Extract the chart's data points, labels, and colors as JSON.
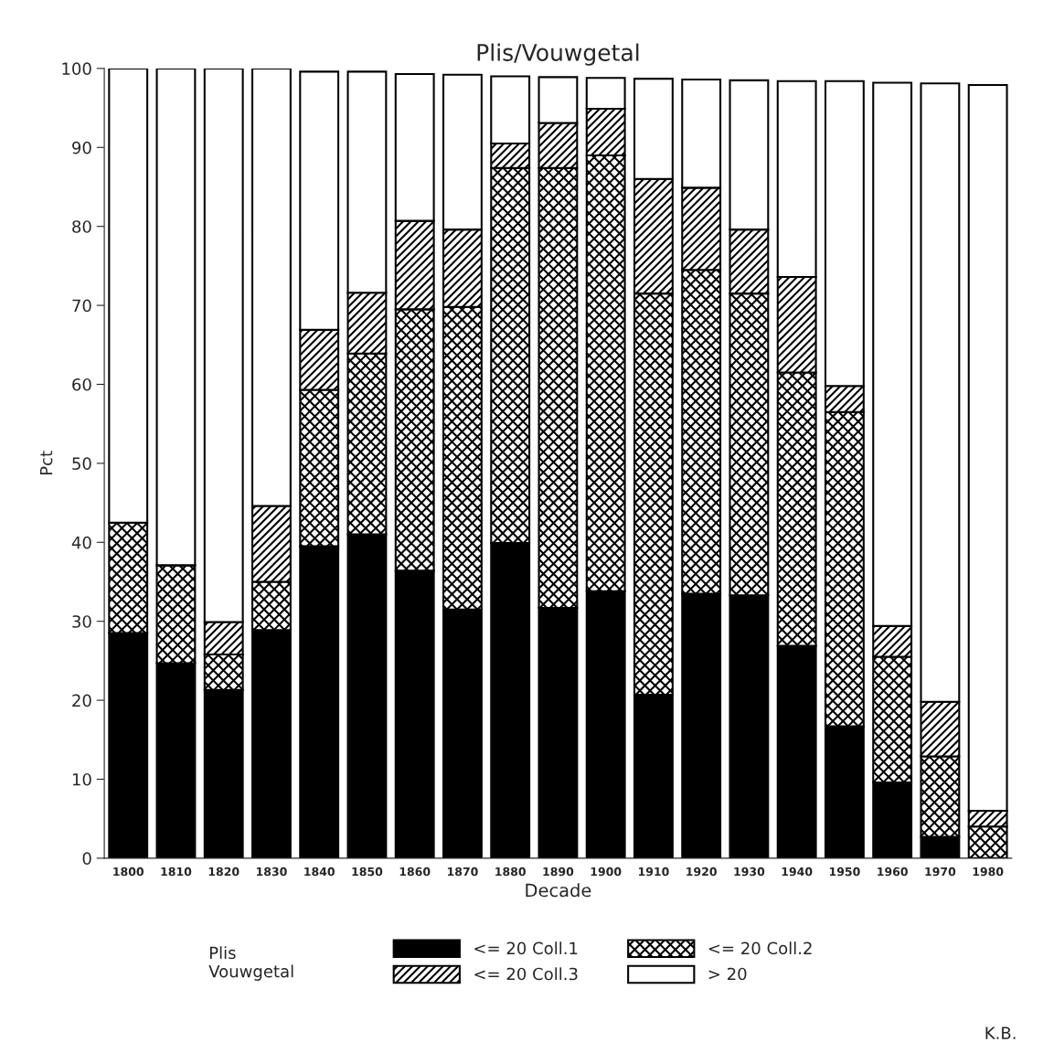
{
  "chart_data": {
    "type": "bar",
    "stacked": true,
    "title": "Plis/Vouwgetal",
    "xlabel": "Decade",
    "ylabel": "Pct",
    "legend_title": "Plis\nVouwgetal",
    "legend": "bottom",
    "grid": false,
    "categories": [
      "1800",
      "1810",
      "1820",
      "1830",
      "1840",
      "1850",
      "1860",
      "1870",
      "1880",
      "1890",
      "1900",
      "1910",
      "1920",
      "1930",
      "1940",
      "1950",
      "1960",
      "1970",
      "1980"
    ],
    "ylim": [
      0,
      100
    ],
    "yticks": [
      0,
      10,
      20,
      30,
      40,
      50,
      60,
      70,
      80,
      90,
      100
    ],
    "series": [
      {
        "name": "<= 20 Coll.1",
        "color": "#000000",
        "values": [
          28.5,
          24.7,
          21.3,
          28.9,
          39.5,
          41.0,
          36.4,
          31.5,
          39.9,
          31.7,
          33.8,
          20.7,
          33.5,
          33.3,
          26.9,
          16.7,
          9.6,
          2.7,
          0
        ]
      },
      {
        "name": "<= 20 Coll.2",
        "color": "#000000",
        "values": [
          14.0,
          12.4,
          4.5,
          6.1,
          19.8,
          22.9,
          33.1,
          38.3,
          47.5,
          55.7,
          55.2,
          50.8,
          41.0,
          38.2,
          34.6,
          39.8,
          15.9,
          10.2,
          4.0
        ]
      },
      {
        "name": "<= 20 Coll.3",
        "color": "#000000",
        "values": [
          0,
          0,
          4.1,
          9.6,
          7.6,
          7.7,
          11.2,
          9.8,
          3.1,
          5.7,
          5.9,
          14.5,
          10.4,
          8.1,
          12.1,
          3.3,
          3.9,
          6.9,
          2.0
        ]
      },
      {
        "name": "> 20",
        "color": "#ffffff",
        "values": [
          57.5,
          62.9,
          70.1,
          55.4,
          32.7,
          28.0,
          18.6,
          19.6,
          8.5,
          5.8,
          3.9,
          12.7,
          13.7,
          18.9,
          24.8,
          38.6,
          68.8,
          78.3,
          91.9
        ]
      }
    ],
    "annotations": [
      "K.B."
    ]
  }
}
